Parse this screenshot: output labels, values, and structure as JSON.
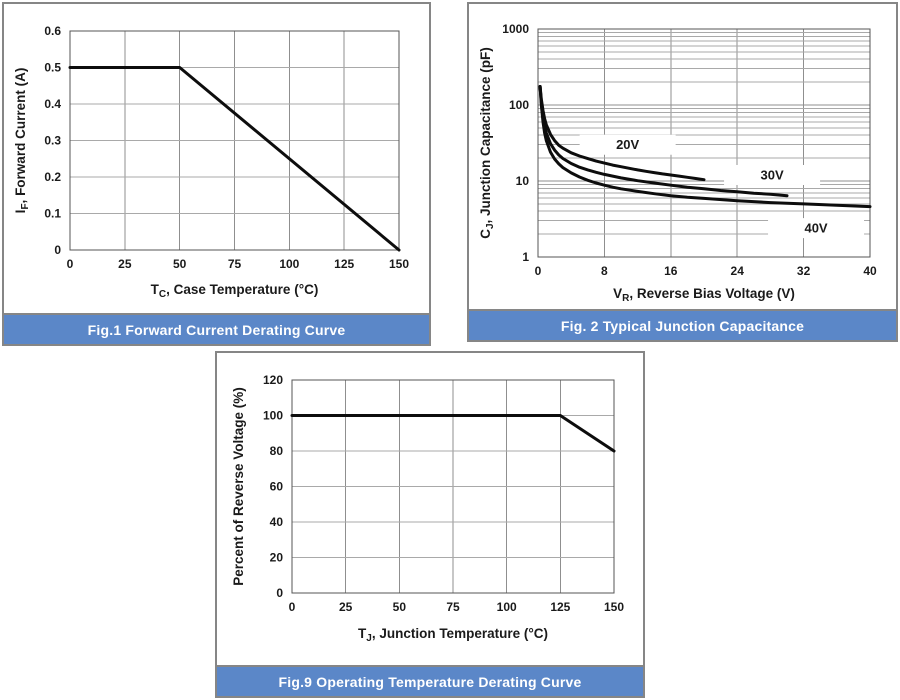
{
  "theme": {
    "caption_bg": "#5b87c8",
    "caption_text": "#ffffff",
    "panel_border": "#868686",
    "grid_color": "#a9a9a9",
    "grid_major_color": "#8f8f8f",
    "axis_border": "#555555",
    "curve_color": "#0d0d0d",
    "tick_text": "#1a1a1a",
    "annotation_bg": "#ffffff"
  },
  "chart_data": [
    {
      "type": "line",
      "title": "Fig.1 Forward Current Derating Curve",
      "xlabel": {
        "prefix": "T",
        "sub": "C",
        "rest": ", Case Temperature (°C)"
      },
      "ylabel": {
        "prefix": "I",
        "sub": "F",
        "rest": ", Forward Current (A)"
      },
      "yscale": "linear",
      "xlim": [
        0,
        150
      ],
      "ylim": [
        0,
        0.6
      ],
      "xticks": {
        "values": [
          0,
          25,
          50,
          75,
          100,
          125,
          150
        ],
        "labels": [
          "0",
          "25",
          "50",
          "75",
          "100",
          "125",
          "150"
        ]
      },
      "yticks": {
        "values": [
          0,
          0.1,
          0.2,
          0.3,
          0.4,
          0.5,
          0.6
        ],
        "labels": [
          "0",
          "0.1",
          "0.2",
          "0.3",
          "0.4",
          "0.5",
          "0.6"
        ]
      },
      "xgrid": [
        25,
        50,
        75,
        100,
        125
      ],
      "ygrid": [
        0.1,
        0.2,
        0.3,
        0.4,
        0.5
      ],
      "ygrid_major": [],
      "grid": true,
      "series": [
        {
          "name": "forward-current-derating",
          "points": [
            [
              0,
              0.5
            ],
            [
              50,
              0.5
            ],
            [
              150,
              0
            ]
          ]
        }
      ],
      "annotations": []
    },
    {
      "type": "line",
      "title": "Fig. 2 Typical Junction Capacitance",
      "xlabel": {
        "prefix": "V",
        "sub": "R",
        "rest": ", Reverse Bias Voltage (V)"
      },
      "ylabel": {
        "prefix": "C",
        "sub": "J",
        "rest": ", Junction Capacitance (pF)"
      },
      "yscale": "log",
      "xlim": [
        0,
        40
      ],
      "ylim": [
        1,
        1000
      ],
      "xticks": {
        "values": [
          0,
          8,
          16,
          24,
          32,
          40
        ],
        "labels": [
          "0",
          "8",
          "16",
          "24",
          "32",
          "40"
        ]
      },
      "yticks": {
        "values": [
          1,
          10,
          100,
          1000
        ],
        "labels": [
          "1",
          "10",
          "100",
          "1000"
        ]
      },
      "xgrid": [
        8,
        16,
        24,
        32
      ],
      "ygrid": [
        2,
        3,
        4,
        5,
        6,
        7,
        8,
        9,
        20,
        30,
        40,
        50,
        60,
        70,
        80,
        90,
        200,
        300,
        400,
        500,
        600,
        700,
        800,
        900
      ],
      "ygrid_major": [
        10,
        100
      ],
      "grid": true,
      "series": [
        {
          "name": "20V",
          "points": [
            [
              0.25,
              175
            ],
            [
              0.4,
              120
            ],
            [
              0.6,
              85
            ],
            [
              0.8,
              66
            ],
            [
              1,
              55
            ],
            [
              1.5,
              41
            ],
            [
              2,
              34
            ],
            [
              2.5,
              29.5
            ],
            [
              3,
              27
            ],
            [
              4,
              23.5
            ],
            [
              5,
              21.3
            ],
            [
              6,
              19.7
            ],
            [
              7,
              18.3
            ],
            [
              8,
              17.2
            ],
            [
              9,
              16.2
            ],
            [
              10,
              15.4
            ],
            [
              11,
              14.7
            ],
            [
              12,
              14
            ],
            [
              13,
              13.4
            ],
            [
              14,
              12.9
            ],
            [
              15,
              12.4
            ],
            [
              16,
              12
            ],
            [
              17,
              11.6
            ],
            [
              18,
              11.2
            ],
            [
              19,
              10.8
            ],
            [
              20,
              10.4
            ]
          ]
        },
        {
          "name": "30V",
          "points": [
            [
              0.25,
              175
            ],
            [
              0.4,
              108
            ],
            [
              0.6,
              70
            ],
            [
              0.8,
              53
            ],
            [
              1,
              43
            ],
            [
              1.5,
              31
            ],
            [
              2,
              25.5
            ],
            [
              2.5,
              22
            ],
            [
              3,
              19.8
            ],
            [
              4,
              17
            ],
            [
              5,
              15.2
            ],
            [
              6,
              14
            ],
            [
              7,
              13
            ],
            [
              8,
              12.2
            ],
            [
              9,
              11.6
            ],
            [
              10,
              11
            ],
            [
              12,
              10.1
            ],
            [
              14,
              9.4
            ],
            [
              16,
              8.8
            ],
            [
              18,
              8.3
            ],
            [
              20,
              7.9
            ],
            [
              22,
              7.5
            ],
            [
              24,
              7.2
            ],
            [
              26,
              6.9
            ],
            [
              28,
              6.7
            ],
            [
              30,
              6.4
            ]
          ]
        },
        {
          "name": "40V",
          "points": [
            [
              0.25,
              175
            ],
            [
              0.4,
              100
            ],
            [
              0.6,
              60
            ],
            [
              0.8,
              43
            ],
            [
              1,
              34
            ],
            [
              1.5,
              24
            ],
            [
              2,
              19.5
            ],
            [
              2.5,
              16.8
            ],
            [
              3,
              15
            ],
            [
              4,
              12.8
            ],
            [
              5,
              11.3
            ],
            [
              6,
              10.2
            ],
            [
              7,
              9.4
            ],
            [
              8,
              8.8
            ],
            [
              9,
              8.3
            ],
            [
              10,
              7.9
            ],
            [
              12,
              7.3
            ],
            [
              14,
              6.8
            ],
            [
              16,
              6.4
            ],
            [
              18,
              6.1
            ],
            [
              20,
              5.9
            ],
            [
              24,
              5.5
            ],
            [
              28,
              5.2
            ],
            [
              32,
              5.0
            ],
            [
              36,
              4.8
            ],
            [
              40,
              4.6
            ]
          ]
        }
      ],
      "annotations": [
        {
          "text": "20V",
          "x": 10.8,
          "y": 30
        },
        {
          "text": "30V",
          "x": 28.2,
          "y": 12
        },
        {
          "text": "40V",
          "x": 33.5,
          "y": 2.4
        }
      ]
    },
    {
      "type": "line",
      "title": "Fig.9 Operating Temperature Derating Curve",
      "xlabel": {
        "prefix": "T",
        "sub": "J",
        "rest": ", Junction Temperature (°C)"
      },
      "ylabel": {
        "prefix": "",
        "sub": "",
        "rest": "Percent of Reverse Voltage (%)"
      },
      "yscale": "linear",
      "xlim": [
        0,
        150
      ],
      "ylim": [
        0,
        120
      ],
      "xticks": {
        "values": [
          0,
          25,
          50,
          75,
          100,
          125,
          150
        ],
        "labels": [
          "0",
          "25",
          "50",
          "75",
          "100",
          "125",
          "150"
        ]
      },
      "yticks": {
        "values": [
          0,
          20,
          40,
          60,
          80,
          100,
          120
        ],
        "labels": [
          "0",
          "20",
          "40",
          "60",
          "80",
          "100",
          "120"
        ]
      },
      "xgrid": [
        25,
        50,
        75,
        100,
        125
      ],
      "ygrid": [
        20,
        40,
        60,
        80,
        100
      ],
      "ygrid_major": [],
      "grid": true,
      "series": [
        {
          "name": "reverse-voltage-derating",
          "points": [
            [
              0,
              100
            ],
            [
              125,
              100
            ],
            [
              150,
              80
            ]
          ]
        }
      ],
      "annotations": []
    }
  ]
}
